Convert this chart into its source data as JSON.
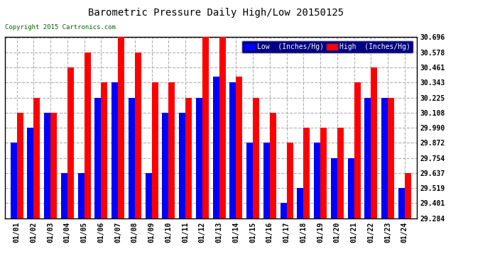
{
  "title": "Barometric Pressure Daily High/Low 20150125",
  "copyright": "Copyright 2015 Cartronics.com",
  "legend_low": "Low  (Inches/Hg)",
  "legend_high": "High  (Inches/Hg)",
  "low_color": "#0000ff",
  "high_color": "#ff0000",
  "background_color": "#ffffff",
  "grid_color": "#b0b0b0",
  "ylim": [
    29.284,
    30.696
  ],
  "yticks": [
    29.284,
    29.401,
    29.519,
    29.637,
    29.754,
    29.872,
    29.99,
    30.108,
    30.225,
    30.343,
    30.461,
    30.578,
    30.696
  ],
  "dates": [
    "01/01",
    "01/02",
    "01/03",
    "01/04",
    "01/05",
    "01/06",
    "01/07",
    "01/08",
    "01/09",
    "01/10",
    "01/11",
    "01/12",
    "01/13",
    "01/14",
    "01/15",
    "01/16",
    "01/17",
    "01/18",
    "01/19",
    "01/20",
    "01/21",
    "01/22",
    "01/23",
    "01/24"
  ],
  "lows": [
    29.872,
    29.99,
    30.108,
    29.637,
    29.637,
    30.225,
    30.343,
    30.225,
    29.637,
    30.108,
    30.108,
    30.225,
    30.39,
    30.343,
    29.872,
    29.872,
    29.401,
    29.519,
    29.872,
    29.754,
    29.754,
    30.225,
    30.225,
    29.519
  ],
  "highs": [
    30.108,
    30.225,
    30.108,
    30.461,
    30.578,
    30.343,
    30.696,
    30.578,
    30.343,
    30.343,
    30.225,
    30.696,
    30.696,
    30.39,
    30.225,
    30.108,
    29.872,
    29.99,
    29.99,
    29.99,
    30.343,
    30.461,
    30.225,
    29.637
  ],
  "figsize": [
    6.9,
    3.75
  ],
  "dpi": 100
}
